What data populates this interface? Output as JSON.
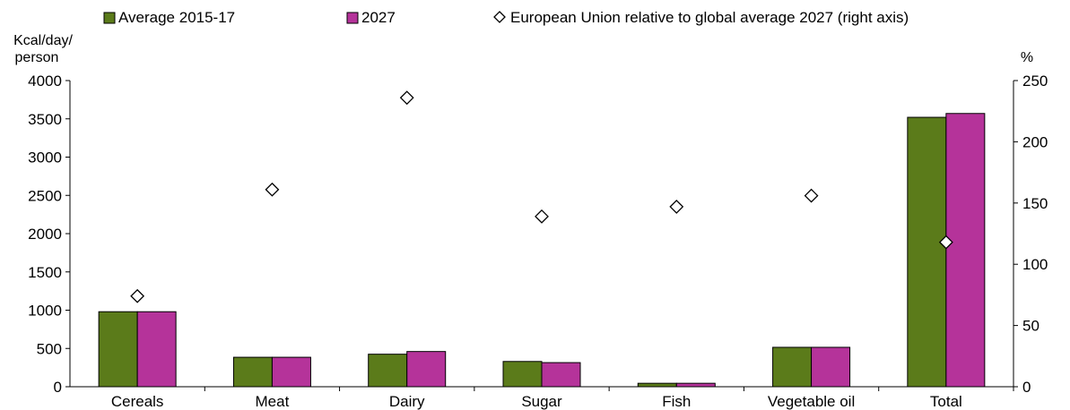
{
  "chart_data": {
    "type": "bar",
    "categories": [
      "Cereals",
      "Meat",
      "Dairy",
      "Sugar",
      "Fish",
      "Vegetable oil",
      "Total"
    ],
    "series": [
      {
        "name": "Average 2015-17",
        "values": [
          980,
          385,
          425,
          330,
          45,
          515,
          3520
        ],
        "color": "#5b7b1a",
        "axis": "left"
      },
      {
        "name": "2027",
        "values": [
          980,
          385,
          460,
          315,
          45,
          515,
          3570
        ],
        "color": "#b5339a",
        "axis": "left"
      }
    ],
    "markers": {
      "name": "European Union relative to global average 2027 (right axis)",
      "values": [
        74,
        161,
        236,
        139,
        147,
        156,
        118
      ],
      "axis": "right",
      "symbol": "diamond"
    },
    "ylabel_left_line1": "Kcal/day/",
    "ylabel_left_line2": "person",
    "ylabel_right": "%",
    "ylim_left": [
      0,
      4000
    ],
    "yticks_left": [
      "0",
      "500",
      "1000",
      "1500",
      "2000",
      "2500",
      "3000",
      "3500",
      "4000"
    ],
    "ylim_right": [
      0,
      250
    ],
    "yticks_right": [
      "0",
      "50",
      "100",
      "150",
      "200",
      "250"
    ],
    "grid": false,
    "legend_position": "top"
  }
}
